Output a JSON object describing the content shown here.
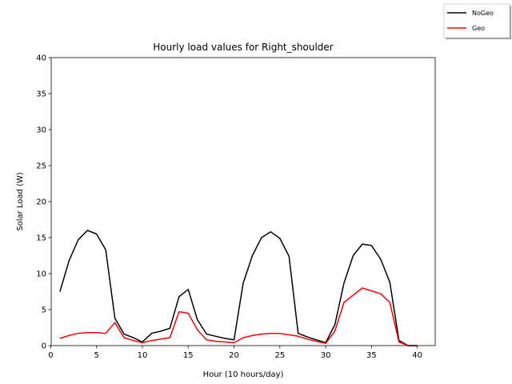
{
  "chart_data": {
    "type": "line",
    "title": "Hourly load values for Right_shoulder",
    "xlabel": "Hour (10 hours/day)",
    "ylabel": "Solar Load (W)",
    "xlim": [
      0.05,
      41.95
    ],
    "ylim": [
      0,
      40
    ],
    "xticks": [
      0,
      5,
      10,
      15,
      20,
      25,
      30,
      35,
      40
    ],
    "yticks": [
      0,
      5,
      10,
      15,
      20,
      25,
      30,
      35,
      40
    ],
    "grid": false,
    "legend_position": "top-right outside",
    "x": [
      1,
      2,
      3,
      4,
      5,
      6,
      7,
      8,
      9,
      10,
      11,
      12,
      13,
      14,
      15,
      16,
      17,
      18,
      19,
      20,
      21,
      22,
      23,
      24,
      25,
      26,
      27,
      28,
      29,
      30,
      31,
      32,
      33,
      34,
      35,
      36,
      37,
      38,
      39,
      40
    ],
    "series": [
      {
        "name": "NoGeo",
        "color": "#000000",
        "values": [
          7.5,
          11.8,
          14.7,
          16.0,
          15.5,
          13.3,
          3.8,
          1.6,
          1.1,
          0.5,
          1.7,
          2.0,
          2.4,
          6.8,
          7.8,
          3.6,
          1.6,
          1.3,
          1.0,
          0.8,
          8.7,
          12.5,
          15.0,
          15.8,
          14.9,
          12.4,
          1.7,
          1.2,
          0.8,
          0.4,
          2.9,
          8.7,
          12.5,
          14.1,
          13.9,
          12.0,
          8.8,
          0.7,
          0.0,
          0.0
        ]
      },
      {
        "name": "Geo",
        "color": "#ff0000",
        "values": [
          1.0,
          1.4,
          1.7,
          1.8,
          1.8,
          1.7,
          3.2,
          1.1,
          0.7,
          0.4,
          0.7,
          0.9,
          1.1,
          4.7,
          4.5,
          2.2,
          0.8,
          0.6,
          0.5,
          0.4,
          1.1,
          1.4,
          1.6,
          1.7,
          1.7,
          1.5,
          1.3,
          0.9,
          0.6,
          0.3,
          2.0,
          6.0,
          7.0,
          8.0,
          7.6,
          7.2,
          6.0,
          0.5,
          0.0,
          0.0
        ]
      }
    ]
  }
}
